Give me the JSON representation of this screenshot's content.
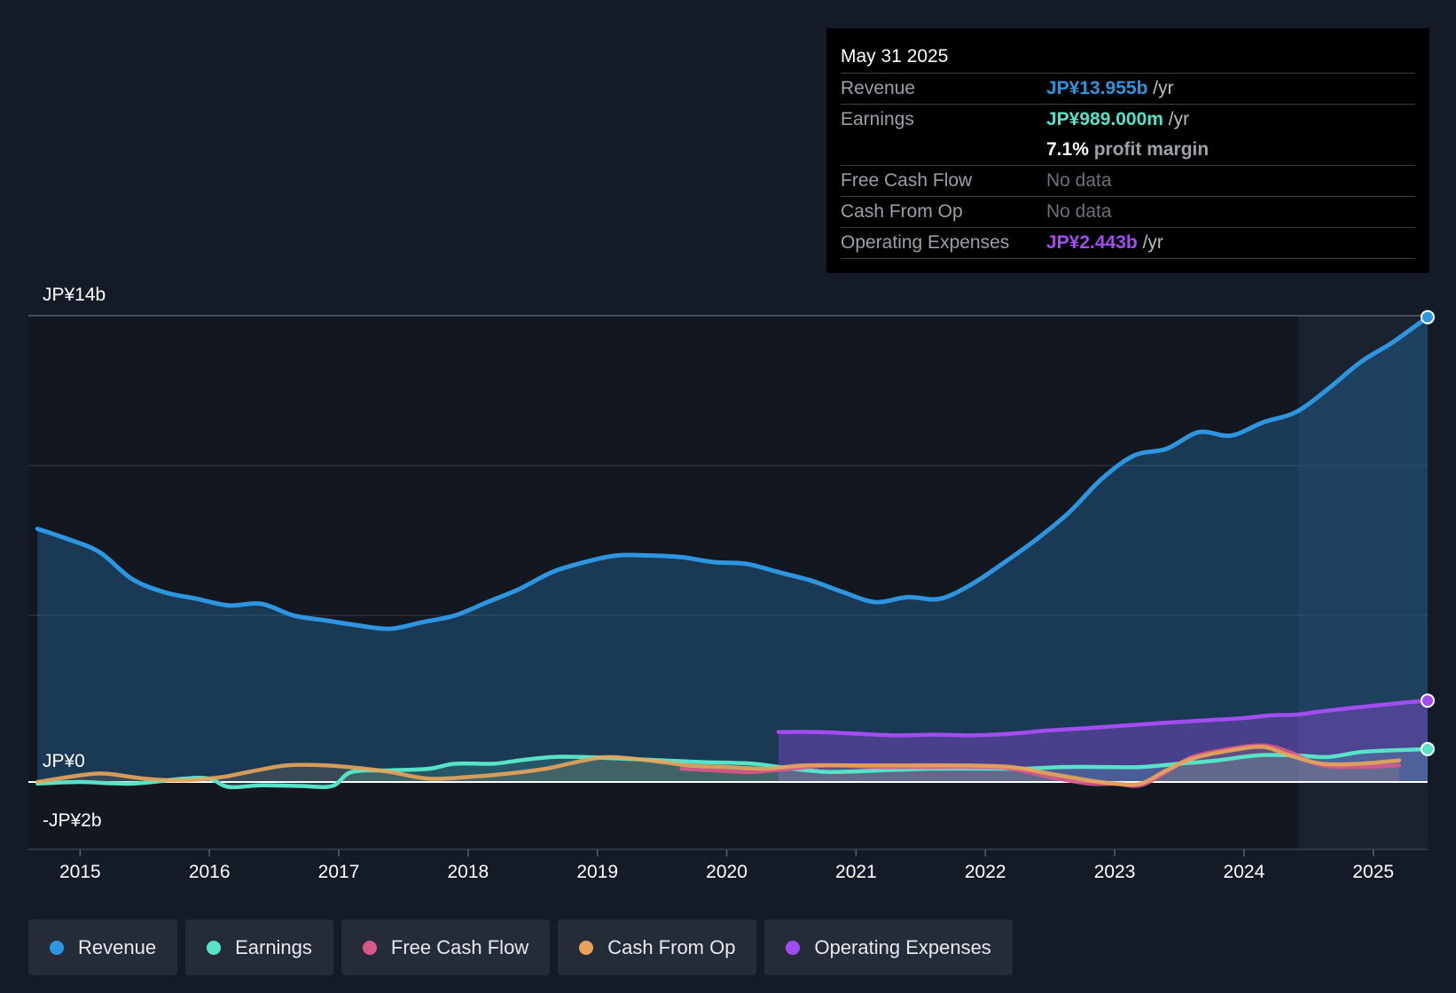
{
  "tooltip": {
    "date": "May 31 2025",
    "revenue_label": "Revenue",
    "revenue_value": "JP¥13.955b",
    "revenue_unit": "/yr",
    "earnings_label": "Earnings",
    "earnings_value": "JP¥989.000m",
    "earnings_unit": "/yr",
    "margin_value": "7.1%",
    "margin_text": "profit margin",
    "fcf_label": "Free Cash Flow",
    "fcf_value": "No data",
    "cfo_label": "Cash From Op",
    "cfo_value": "No data",
    "opex_label": "Operating Expenses",
    "opex_value": "JP¥2.443b",
    "opex_unit": "/yr"
  },
  "legend": [
    {
      "label": "Revenue",
      "color": "#2e95e0"
    },
    {
      "label": "Earnings",
      "color": "#57e3c8"
    },
    {
      "label": "Free Cash Flow",
      "color": "#d9588a"
    },
    {
      "label": "Cash From Op",
      "color": "#e8a55a"
    },
    {
      "label": "Operating Expenses",
      "color": "#a24df0"
    }
  ],
  "colors": {
    "revenue": "#2e95e0",
    "earnings": "#57e3c8",
    "fcf": "#d9588a",
    "cfo": "#e8a55a",
    "opex": "#a24df0"
  },
  "chart_data": {
    "type": "line",
    "title": "",
    "y_tick_labels": [
      {
        "label": "JP¥14b",
        "value": 14
      },
      {
        "label": "JP¥0",
        "value": 0
      },
      {
        "label": "-JP¥2b",
        "value": -2
      }
    ],
    "ylim": [
      -2,
      14
    ],
    "xlim": [
      2014.6,
      2025.42
    ],
    "forecast_start": 2024.42,
    "x_ticks": [
      2015,
      2016,
      2017,
      2018,
      2019,
      2020,
      2021,
      2022,
      2023,
      2024,
      2025
    ],
    "series": [
      {
        "name": "Revenue",
        "key": "revenue",
        "color": "#2e95e0",
        "fill": true,
        "x": [
          2014.67,
          2014.9,
          2015.15,
          2015.4,
          2015.65,
          2015.9,
          2016.15,
          2016.4,
          2016.65,
          2016.9,
          2017.15,
          2017.4,
          2017.65,
          2017.9,
          2018.15,
          2018.4,
          2018.65,
          2018.9,
          2019.15,
          2019.4,
          2019.65,
          2019.9,
          2020.15,
          2020.4,
          2020.65,
          2020.9,
          2021.15,
          2021.4,
          2021.65,
          2021.9,
          2022.15,
          2022.4,
          2022.65,
          2022.9,
          2023.15,
          2023.4,
          2023.65,
          2023.9,
          2024.15,
          2024.4,
          2024.65,
          2024.9,
          2025.15,
          2025.42
        ],
        "y": [
          7.6,
          7.3,
          6.9,
          6.1,
          5.7,
          5.5,
          5.3,
          5.35,
          5.0,
          4.85,
          4.7,
          4.6,
          4.8,
          5.0,
          5.4,
          5.8,
          6.3,
          6.6,
          6.8,
          6.8,
          6.75,
          6.6,
          6.55,
          6.3,
          6.05,
          5.7,
          5.4,
          5.55,
          5.5,
          5.95,
          6.6,
          7.3,
          8.1,
          9.1,
          9.8,
          10.0,
          10.5,
          10.4,
          10.8,
          11.1,
          11.8,
          12.6,
          13.2,
          13.955
        ]
      },
      {
        "name": "Earnings",
        "key": "earnings",
        "color": "#57e3c8",
        "fill": true,
        "x": [
          2014.67,
          2015.0,
          2015.4,
          2015.8,
          2016.0,
          2016.15,
          2016.4,
          2016.7,
          2016.95,
          2017.1,
          2017.4,
          2017.7,
          2017.9,
          2018.2,
          2018.4,
          2018.65,
          2018.9,
          2019.2,
          2019.5,
          2019.8,
          2020.2,
          2020.5,
          2020.8,
          2021.2,
          2021.6,
          2022.0,
          2022.3,
          2022.6,
          2022.9,
          2023.2,
          2023.5,
          2023.8,
          2024.1,
          2024.4,
          2024.65,
          2024.9,
          2025.15,
          2025.42
        ],
        "y": [
          -0.05,
          0.0,
          -0.05,
          0.1,
          0.1,
          -0.15,
          -0.1,
          -0.12,
          -0.12,
          0.3,
          0.35,
          0.4,
          0.55,
          0.55,
          0.65,
          0.75,
          0.75,
          0.7,
          0.65,
          0.6,
          0.55,
          0.4,
          0.3,
          0.35,
          0.4,
          0.4,
          0.4,
          0.45,
          0.45,
          0.45,
          0.55,
          0.65,
          0.8,
          0.8,
          0.75,
          0.9,
          0.95,
          0.989
        ]
      },
      {
        "name": "Free Cash Flow",
        "key": "fcf",
        "color": "#d9588a",
        "fill": false,
        "x": [
          2019.65,
          2019.9,
          2020.2,
          2020.5,
          2020.8,
          2021.2,
          2021.6,
          2022.0,
          2022.2,
          2022.5,
          2022.8,
          2023.0,
          2023.2,
          2023.4,
          2023.6,
          2023.9,
          2024.15,
          2024.35,
          2024.6,
          2024.9,
          2025.2
        ],
        "y": [
          0.4,
          0.35,
          0.3,
          0.4,
          0.5,
          0.45,
          0.45,
          0.45,
          0.4,
          0.15,
          -0.05,
          -0.05,
          -0.1,
          0.3,
          0.75,
          1.0,
          1.1,
          0.9,
          0.5,
          0.45,
          0.5
        ]
      },
      {
        "name": "Cash From Op",
        "key": "cfo",
        "color": "#e8a55a",
        "fill": true,
        "x": [
          2014.67,
          2015.0,
          2015.2,
          2015.5,
          2015.8,
          2016.1,
          2016.3,
          2016.6,
          2016.9,
          2017.2,
          2017.4,
          2017.7,
          2018.0,
          2018.3,
          2018.6,
          2018.9,
          2019.1,
          2019.4,
          2019.7,
          2020.0,
          2020.3,
          2020.6,
          2021.0,
          2021.4,
          2021.8,
          2022.2,
          2022.5,
          2022.8,
          2023.0,
          2023.2,
          2023.4,
          2023.6,
          2023.9,
          2024.15,
          2024.35,
          2024.6,
          2024.9,
          2025.2
        ],
        "y": [
          0.0,
          0.2,
          0.25,
          0.1,
          0.05,
          0.15,
          0.3,
          0.5,
          0.5,
          0.4,
          0.3,
          0.1,
          0.15,
          0.25,
          0.4,
          0.65,
          0.75,
          0.65,
          0.5,
          0.45,
          0.4,
          0.5,
          0.5,
          0.5,
          0.5,
          0.45,
          0.25,
          0.05,
          -0.05,
          -0.05,
          0.35,
          0.7,
          0.95,
          1.05,
          0.8,
          0.55,
          0.55,
          0.65
        ]
      },
      {
        "name": "Operating Expenses",
        "key": "opex",
        "color": "#a24df0",
        "fill": true,
        "x": [
          2020.4,
          2020.7,
          2021.0,
          2021.3,
          2021.6,
          2021.9,
          2022.2,
          2022.5,
          2022.8,
          2023.1,
          2023.4,
          2023.7,
          2024.0,
          2024.2,
          2024.4,
          2024.6,
          2024.9,
          2025.15,
          2025.42
        ],
        "y": [
          1.5,
          1.5,
          1.45,
          1.4,
          1.42,
          1.4,
          1.45,
          1.55,
          1.62,
          1.7,
          1.78,
          1.85,
          1.92,
          2.0,
          2.02,
          2.12,
          2.25,
          2.35,
          2.443
        ]
      }
    ]
  }
}
